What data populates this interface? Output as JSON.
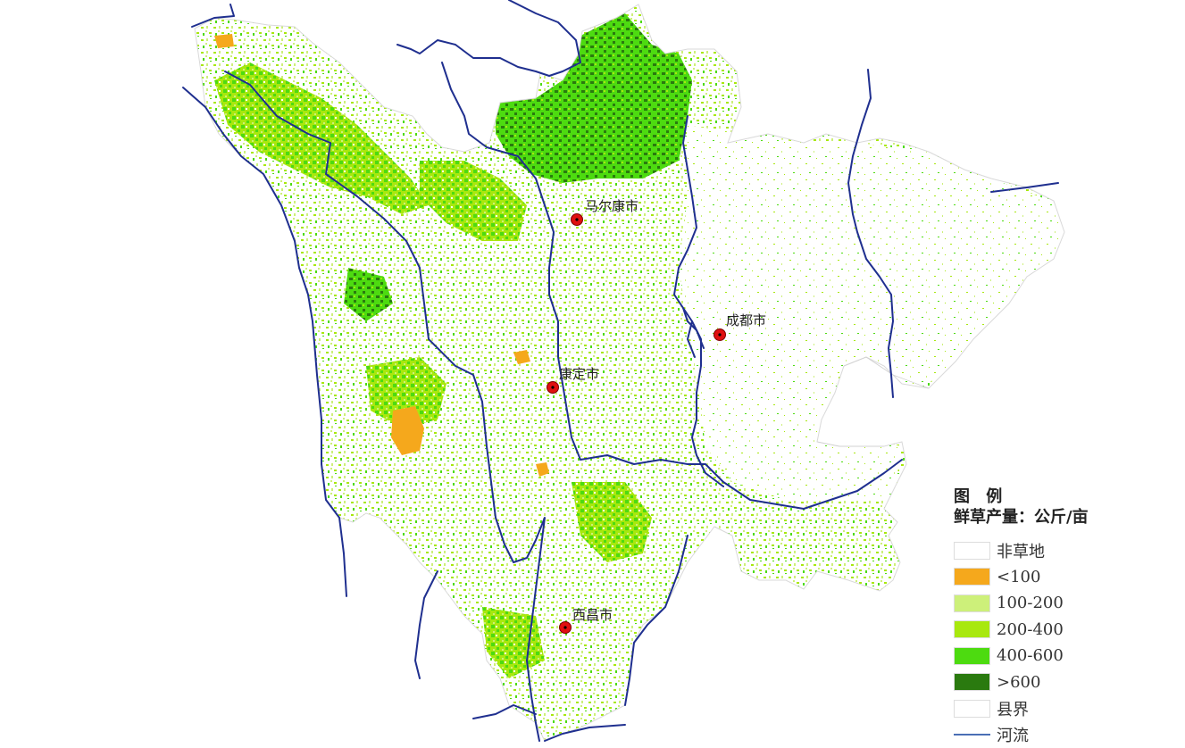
{
  "legend": {
    "title": "图 例",
    "subtitle": "鲜草产量：公斤/亩",
    "items": [
      {
        "label": "非草地",
        "color": "#ffffff",
        "kind": "box"
      },
      {
        "label": "<100",
        "color": "#f5a81c",
        "kind": "box"
      },
      {
        "label": "100-200",
        "color": "#cdf07a",
        "kind": "box"
      },
      {
        "label": "200-400",
        "color": "#a8e80e",
        "kind": "box"
      },
      {
        "label": "400-600",
        "color": "#4ddb10",
        "kind": "box"
      },
      {
        "label": ">600",
        "color": "#2a7a0f",
        "kind": "box"
      },
      {
        "label": "县界",
        "color": "#ffffff",
        "kind": "box"
      },
      {
        "label": "河流",
        "color": "#4a6fb5",
        "kind": "line"
      }
    ]
  },
  "cities": [
    {
      "name": "马尔康市"
    },
    {
      "name": "成都市"
    },
    {
      "name": "康定市"
    },
    {
      "name": "西昌市"
    }
  ],
  "colors": {
    "river": "#1f2f8f",
    "city_marker": "#e01010",
    "high": "#2a7a0f",
    "mid_high": "#4ddb10",
    "mid": "#a8e80e",
    "low_mid": "#cdf07a",
    "low": "#f5a81c"
  }
}
